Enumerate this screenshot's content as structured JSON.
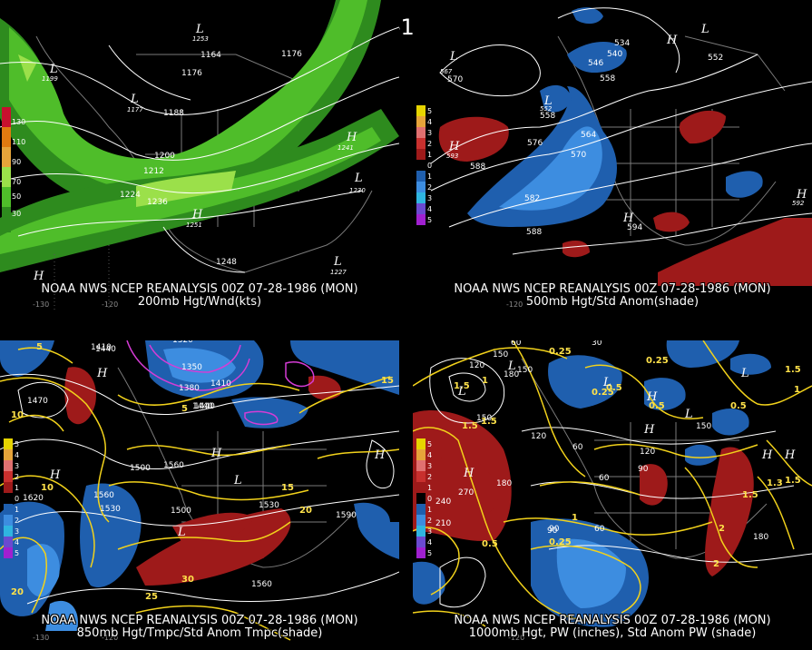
{
  "title": "00Z 07-28-1986 (MON)",
  "colors": {
    "wind_light": "#9be04a",
    "wind_mid": "#4fbd2a",
    "wind_dark": "#2e8b1e",
    "anom_pos": "#9e1a1a",
    "anom_neg_dark": "#1f5fae",
    "anom_neg_light": "#3d8de0",
    "yellow_contour": "#f2d21b",
    "magenta_contour": "#d63cd6",
    "map_gray": "#7a7a7a"
  },
  "panels": [
    {
      "id": "200mb",
      "header": "NOAA NWS NCEP REANALYSIS 00Z 07-28-1986 (MON)",
      "subtitle": "200mb Hgt/Wnd(kts)",
      "legend": [
        "130",
        "110",
        "90",
        "70",
        "50",
        "30"
      ],
      "legend_colors": [
        "#c8102e",
        "#e07a10",
        "#e6a43a",
        "#9be04a",
        "#4fbd2a",
        "#2e8b1e"
      ],
      "contour_labels": [
        "1164",
        "1176",
        "1176",
        "1188",
        "1177",
        "1200",
        "1212",
        "1224",
        "1236",
        "1251",
        "1248",
        "1241",
        "1230",
        "1227",
        "1253",
        "1199"
      ],
      "pressure_centers": [
        "L",
        "L",
        "H",
        "L",
        "H",
        "H",
        "L",
        "L"
      ],
      "longitudes": [
        "-130",
        "-120"
      ]
    },
    {
      "id": "500mb",
      "header": "NOAA NWS NCEP REANALYSIS 00Z 07-28-1986 (MON)",
      "subtitle": "500mb Hgt/Std Anom(shade)",
      "legend": [
        "5",
        "4",
        "3",
        "2",
        "1",
        "0",
        "1",
        "2",
        "3",
        "4",
        "5"
      ],
      "contour_labels": [
        "534",
        "540",
        "546",
        "552",
        "558",
        "552",
        "564",
        "570",
        "576",
        "588",
        "582",
        "588",
        "594",
        "570",
        "558",
        "593",
        "592",
        "567"
      ],
      "pressure_centers": [
        "L",
        "H",
        "L",
        "H",
        "H",
        "H",
        "L"
      ],
      "longitudes": [
        "-120"
      ]
    },
    {
      "id": "850mb",
      "header": "NOAA NWS NCEP REANALYSIS 00Z 07-28-1986 (MON)",
      "subtitle": "850mb Hgt/Tmpc/Std Anom Tmpc(shade)",
      "legend": [
        "5",
        "4",
        "3",
        "2",
        "1",
        "0",
        "1",
        "2",
        "3",
        "4",
        "5"
      ],
      "contour_labels": [
        "1410",
        "1440",
        "1320",
        "1350",
        "1380",
        "1410",
        "1440",
        "1470",
        "1500",
        "1530",
        "1560",
        "1590",
        "1620",
        "1560",
        "1530",
        "1500",
        "1560",
        "1440"
      ],
      "temp_labels": [
        "15",
        "10",
        "5",
        "20",
        "25",
        "30",
        "20",
        "10",
        "15",
        "5"
      ],
      "pressure_centers": [
        "H",
        "H",
        "H",
        "L",
        "L",
        "H"
      ],
      "longitudes": [
        "-130",
        "-120"
      ]
    },
    {
      "id": "1000mb",
      "header": "NOAA NWS NCEP REANALYSIS 00Z 07-28-1986 (MON)",
      "subtitle": "1000mb Hgt, PW (inches), Std Anom PW (shade)",
      "legend": [
        "5",
        "4",
        "3",
        "2",
        "1",
        "0",
        "1",
        "2",
        "3",
        "4",
        "5"
      ],
      "contour_labels": [
        "150",
        "120",
        "180",
        "150",
        "120",
        "60",
        "90",
        "60",
        "240",
        "270",
        "180",
        "150",
        "210",
        "120",
        "90",
        "60",
        "150",
        "180",
        "30",
        "60",
        "90"
      ],
      "pw_labels": [
        "0.25",
        "0.5",
        "1",
        "1.5",
        "0.25",
        "0.5",
        "1.5",
        "0.25",
        "1",
        "1.5",
        "0.5",
        "0.25",
        "0.5",
        "1.5",
        "2",
        "1.5",
        "2",
        "1.5",
        "1",
        "1.3"
      ],
      "pressure_centers": [
        "L",
        "H",
        "H",
        "L",
        "L",
        "L",
        "H",
        "L",
        "H",
        "H"
      ],
      "longitudes": [
        "-120"
      ]
    }
  ]
}
